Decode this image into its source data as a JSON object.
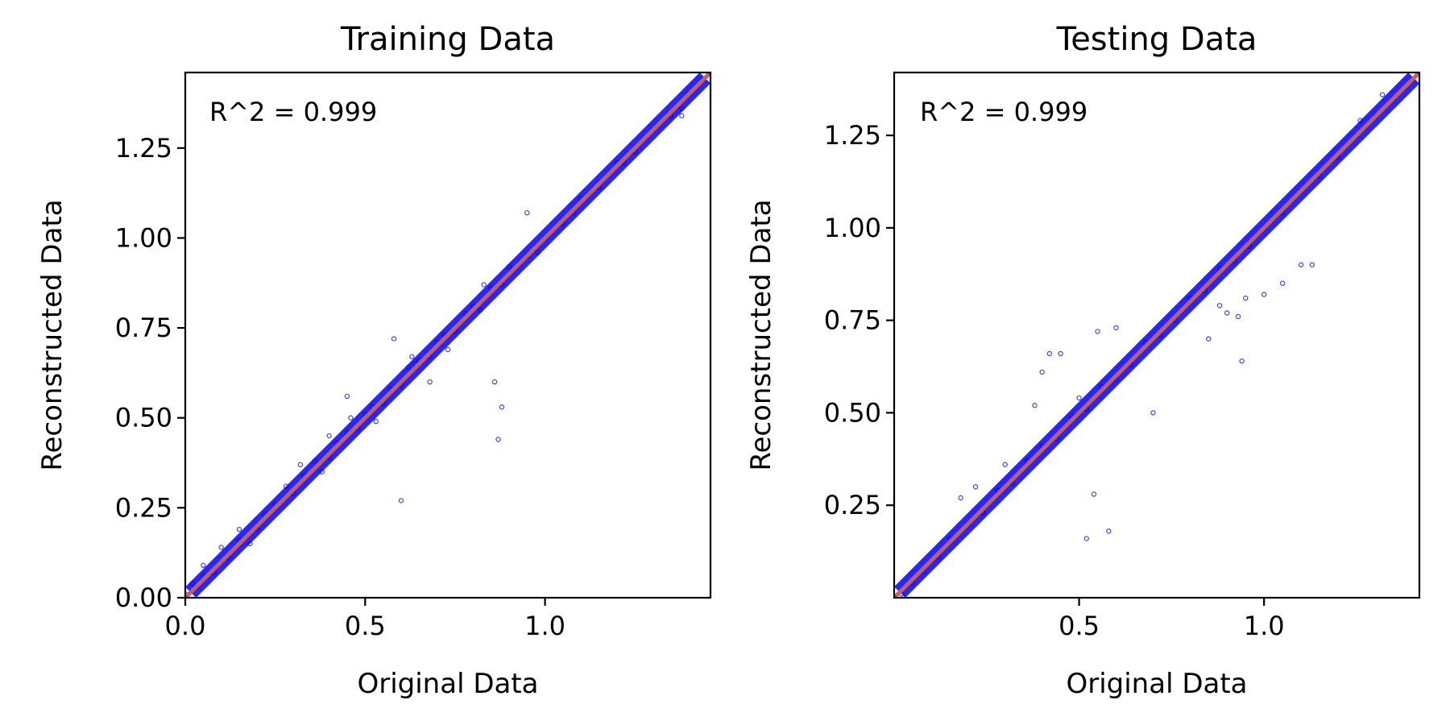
{
  "chart_data": [
    {
      "type": "scatter",
      "title": "Training Data",
      "xlabel": "Original Data",
      "ylabel": "Reconstructed Data",
      "annotation": "R^2 = 0.999",
      "xlim": [
        0.0,
        1.46
      ],
      "ylim": [
        0.0,
        1.46
      ],
      "xticks": [
        0.0,
        0.5,
        1.0
      ],
      "xtick_labels": [
        "0.0",
        "0.5",
        "1.0"
      ],
      "yticks": [
        0.0,
        0.25,
        0.5,
        0.75,
        1.0,
        1.25
      ],
      "ytick_labels": [
        "0.00",
        "0.25",
        "0.50",
        "0.75",
        "1.00",
        "1.25"
      ],
      "grid": false,
      "colors": {
        "points": "#0000ff",
        "fit_line": "#cd5c5c"
      },
      "fit_line": {
        "x": [
          0.0,
          1.46
        ],
        "y": [
          0.0,
          1.46
        ]
      },
      "series": [
        {
          "x": [
            0.0,
            0.02,
            0.05,
            0.08,
            0.12,
            0.15,
            0.2,
            0.22,
            0.25,
            0.3,
            0.33,
            0.36,
            0.4,
            0.42,
            0.45,
            0.48,
            0.5,
            0.52,
            0.55,
            0.57,
            0.6,
            0.62,
            0.65,
            0.68,
            0.7,
            0.72,
            0.75,
            0.78,
            0.8,
            0.82,
            0.85,
            0.88,
            0.9,
            0.93,
            0.95,
            1.0,
            1.05,
            1.1,
            1.15,
            1.2,
            1.25,
            1.3,
            1.35,
            1.4,
            1.44,
            0.1,
            0.18,
            0.28,
            0.38,
            0.46,
            0.53,
            0.63,
            0.73,
            0.83,
            0.98,
            1.08,
            1.22,
            1.38,
            0.6,
            0.87,
            0.64,
            0.86,
            0.95,
            0.88,
            1.38,
            0.58,
            0.68,
            0.4,
            0.45,
            0.32,
            0.15,
            0.05
          ],
          "y": [
            0.01,
            0.04,
            0.06,
            0.07,
            0.11,
            0.16,
            0.19,
            0.23,
            0.26,
            0.29,
            0.34,
            0.38,
            0.39,
            0.43,
            0.46,
            0.47,
            0.51,
            0.53,
            0.54,
            0.58,
            0.59,
            0.64,
            0.66,
            0.67,
            0.71,
            0.73,
            0.74,
            0.79,
            0.81,
            0.8,
            0.86,
            0.87,
            0.92,
            0.93,
            0.95,
            1.0,
            1.04,
            1.11,
            1.14,
            1.21,
            1.24,
            1.3,
            1.34,
            1.4,
            1.44,
            0.14,
            0.15,
            0.31,
            0.35,
            0.5,
            0.49,
            0.67,
            0.69,
            0.87,
            0.96,
            1.07,
            1.21,
            1.36,
            0.27,
            0.44,
            0.65,
            0.6,
            1.07,
            0.53,
            1.34,
            0.72,
            0.6,
            0.45,
            0.56,
            0.37,
            0.19,
            0.09
          ]
        }
      ]
    },
    {
      "type": "scatter",
      "title": "Testing Data",
      "xlabel": "Original Data",
      "ylabel": "Reconstructed Data",
      "annotation": "R^2 = 0.999",
      "xlim": [
        0.0,
        1.42
      ],
      "ylim": [
        0.0,
        1.42
      ],
      "xticks": [
        0.5,
        1.0
      ],
      "xtick_labels": [
        "0.5",
        "1.0"
      ],
      "yticks": [
        0.25,
        0.5,
        0.75,
        1.0,
        1.25
      ],
      "ytick_labels": [
        "0.25",
        "0.50",
        "0.75",
        "1.00",
        "1.25"
      ],
      "grid": false,
      "colors": {
        "points": "#0000ff",
        "fit_line": "#cd5c5c"
      },
      "fit_line": {
        "x": [
          0.0,
          1.42
        ],
        "y": [
          0.0,
          1.42
        ]
      },
      "series": [
        {
          "x": [
            0.02,
            0.05,
            0.08,
            0.12,
            0.15,
            0.2,
            0.24,
            0.28,
            0.32,
            0.36,
            0.4,
            0.44,
            0.48,
            0.52,
            0.56,
            0.6,
            0.64,
            0.68,
            0.72,
            0.76,
            0.8,
            0.84,
            0.88,
            0.92,
            0.96,
            1.0,
            1.05,
            1.1,
            1.15,
            1.2,
            1.25,
            1.3,
            1.35,
            1.4,
            0.38,
            0.42,
            0.55,
            0.6,
            0.4,
            0.45,
            0.5,
            0.88,
            0.95,
            1.0,
            1.05,
            1.1,
            1.13,
            0.85,
            0.9,
            0.93,
            0.58,
            0.52,
            0.54,
            0.7,
            0.94,
            0.3,
            0.22,
            0.18,
            1.26,
            1.32
          ],
          "y": [
            0.01,
            0.04,
            0.07,
            0.11,
            0.16,
            0.2,
            0.23,
            0.29,
            0.31,
            0.37,
            0.41,
            0.43,
            0.49,
            0.51,
            0.57,
            0.59,
            0.63,
            0.69,
            0.71,
            0.75,
            0.81,
            0.83,
            0.89,
            0.91,
            0.95,
            1.0,
            1.04,
            1.1,
            1.14,
            1.19,
            1.25,
            1.3,
            1.35,
            1.4,
            0.52,
            0.66,
            0.72,
            0.73,
            0.61,
            0.66,
            0.54,
            0.79,
            0.81,
            0.82,
            0.85,
            0.9,
            0.9,
            0.7,
            0.77,
            0.76,
            0.18,
            0.16,
            0.28,
            0.5,
            0.64,
            0.36,
            0.3,
            0.27,
            1.29,
            1.36
          ]
        }
      ]
    }
  ]
}
